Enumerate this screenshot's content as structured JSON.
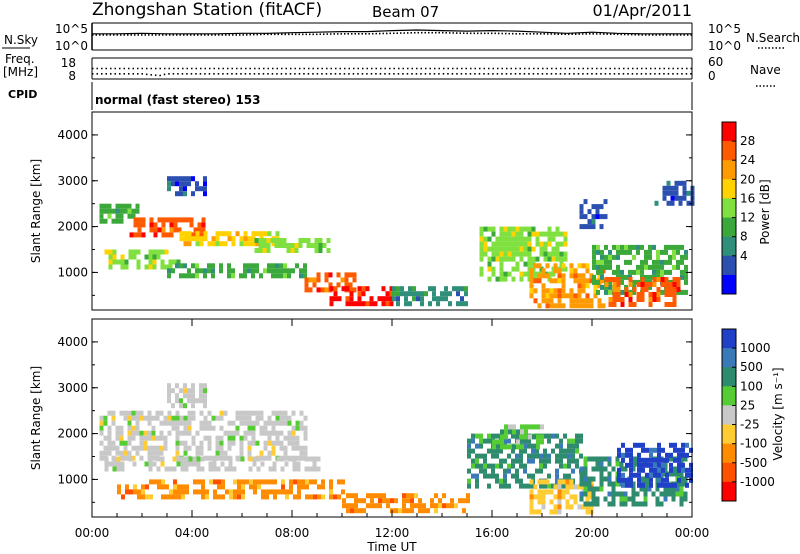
{
  "header": {
    "station": "Zhongshan Station (fitACF)",
    "beam": "Beam 07",
    "date": "01/Apr/2011"
  },
  "chart_data": [
    {
      "type": "line",
      "panel": "nsky-nsearch",
      "left_label": "N.Sky",
      "right_label": "N.Search",
      "left_ticks": [
        "10^5",
        "10^0"
      ],
      "right_ticks": [
        "10^5",
        "10^0"
      ],
      "x": [
        0,
        1,
        2,
        3,
        4,
        5,
        6,
        7,
        8,
        9,
        10,
        11,
        12,
        13,
        14,
        15,
        16,
        17,
        18,
        19,
        20,
        21,
        22,
        23,
        24
      ],
      "series": [
        {
          "values": [
            3.0,
            3.0,
            3.1,
            3.0,
            3.0,
            3.0,
            3.1,
            3.1,
            3.2,
            3.3,
            3.4,
            3.4,
            3.6,
            3.7,
            3.6,
            3.5,
            3.6,
            3.5,
            3.3,
            3.1,
            3.3,
            3.1,
            3.0,
            3.0,
            3.0
          ]
        },
        {
          "values": [
            2.8,
            2.8,
            2.8,
            2.8,
            2.8,
            2.8,
            2.8,
            2.9,
            2.9,
            2.9,
            3.0,
            3.0,
            3.1,
            3.2,
            3.2,
            3.1,
            3.1,
            3.0,
            3.0,
            2.9,
            3.0,
            2.9,
            2.8,
            2.8,
            2.8
          ]
        }
      ],
      "ylim": [
        0,
        5
      ]
    },
    {
      "type": "line",
      "panel": "freq-nave",
      "left_label_line1": "Freq.",
      "left_label_line2": "[MHz]",
      "right_label": "Nave",
      "left_ticks": [
        "18",
        "8"
      ],
      "right_ticks": [
        "60",
        "0"
      ],
      "x": [
        0,
        1,
        2,
        2.5,
        2.7,
        3,
        4,
        6,
        8,
        10,
        12,
        14,
        16,
        18,
        20,
        22,
        24
      ],
      "series": [
        {
          "values": [
            13.0,
            13.0,
            13.0,
            13.0,
            13.0,
            13.0,
            13.0,
            13.0,
            13.0,
            13.0,
            13.0,
            13.0,
            13.0,
            13.0,
            13.0,
            13.0,
            13.0
          ]
        },
        {
          "values": [
            10.5,
            10.5,
            10.5,
            9.8,
            9.6,
            10.5,
            10.5,
            10.5,
            10.5,
            10.5,
            10.5,
            10.5,
            10.5,
            10.5,
            10.5,
            10.5,
            10.5
          ]
        }
      ],
      "ylim": [
        8,
        18
      ]
    },
    {
      "type": "heatmap",
      "panel": "power",
      "cpid_label": "CPID",
      "mode_text": "normal (fast stereo) 153",
      "ylabel": "Slant Range [km]",
      "y_ticks": [
        "4000",
        "3000",
        "2000",
        "1000"
      ],
      "ylim": [
        180,
        4500
      ],
      "colorbar_label": "Power [dB]",
      "colorbar_ticks": [
        "28",
        "24",
        "20",
        "16",
        "12",
        "8",
        "4"
      ],
      "colorbar_colors": [
        "#ff0000",
        "#ff5a00",
        "#ff9a00",
        "#ffd200",
        "#7fe040",
        "#3aa83a",
        "#2f8f7a",
        "#2c50b0",
        "#0000ff"
      ],
      "regions": [
        {
          "x": [
            0.3,
            2.0
          ],
          "r": [
            2100,
            2500
          ],
          "c": 5
        },
        {
          "x": [
            1.5,
            4.5
          ],
          "r": [
            1850,
            2200
          ],
          "c": 1
        },
        {
          "x": [
            3.5,
            7.5
          ],
          "r": [
            1650,
            1900
          ],
          "c": 3
        },
        {
          "x": [
            6.5,
            9.5
          ],
          "r": [
            1450,
            1750
          ],
          "c": 4
        },
        {
          "x": [
            0.5,
            3.5
          ],
          "r": [
            1100,
            1500
          ],
          "c": 4
        },
        {
          "x": [
            3.0,
            8.5
          ],
          "r": [
            900,
            1200
          ],
          "c": 5
        },
        {
          "x": [
            8.5,
            10.5
          ],
          "r": [
            600,
            1000
          ],
          "c": 1
        },
        {
          "x": [
            9.5,
            12.0
          ],
          "r": [
            300,
            700
          ],
          "c": 0
        },
        {
          "x": [
            12.0,
            15.0
          ],
          "r": [
            300,
            700
          ],
          "c": 6
        },
        {
          "x": [
            15.5,
            19.0
          ],
          "r": [
            800,
            2000
          ],
          "c": 4
        },
        {
          "x": [
            17.5,
            20.5
          ],
          "r": [
            300,
            1200
          ],
          "c": 2
        },
        {
          "x": [
            20.0,
            23.8
          ],
          "r": [
            600,
            1600
          ],
          "c": 5
        },
        {
          "x": [
            20.5,
            23.5
          ],
          "r": [
            300,
            900
          ],
          "c": 1
        },
        {
          "x": [
            3.0,
            4.5
          ],
          "r": [
            2700,
            3100
          ],
          "c": 7
        },
        {
          "x": [
            19.5,
            20.5
          ],
          "r": [
            2000,
            2600
          ],
          "c": 7
        },
        {
          "x": [
            22.5,
            24.0
          ],
          "r": [
            2500,
            3000
          ],
          "c": 7
        }
      ]
    },
    {
      "type": "heatmap",
      "panel": "velocity",
      "ylabel": "Slant Range [km]",
      "y_ticks": [
        "4000",
        "3000",
        "2000",
        "1000"
      ],
      "ylim": [
        180,
        4500
      ],
      "xlabel": "Time UT",
      "x_ticks": [
        "00:00",
        "04:00",
        "08:00",
        "12:00",
        "16:00",
        "20:00",
        "00:00"
      ],
      "xlim": [
        0,
        24
      ],
      "colorbar_label": "Velocity [m s⁻¹]",
      "colorbar_ticks": [
        "1000",
        "500",
        "100",
        "25",
        "-25",
        "-100",
        "-500",
        "-1000"
      ],
      "colorbar_colors": [
        "#2040c8",
        "#3a7ab8",
        "#2e8b6e",
        "#55cc33",
        "#c8c8c8",
        "#ffcc33",
        "#ff8c00",
        "#ff5000",
        "#ff0000"
      ],
      "regions": [
        {
          "x": [
            0.3,
            8.5
          ],
          "r": [
            1500,
            2500
          ],
          "c": 4
        },
        {
          "x": [
            0.5,
            9.0
          ],
          "r": [
            1200,
            1500
          ],
          "c": 4
        },
        {
          "x": [
            1.0,
            10.0
          ],
          "r": [
            600,
            1000
          ],
          "c": 6
        },
        {
          "x": [
            10.0,
            15.0
          ],
          "r": [
            300,
            700
          ],
          "c": 6
        },
        {
          "x": [
            15.0,
            19.5
          ],
          "r": [
            800,
            2000
          ],
          "c": 2
        },
        {
          "x": [
            17.5,
            20.0
          ],
          "r": [
            300,
            1000
          ],
          "c": 5
        },
        {
          "x": [
            19.5,
            23.8
          ],
          "r": [
            500,
            1500
          ],
          "c": 2
        },
        {
          "x": [
            21.0,
            24.0
          ],
          "r": [
            900,
            1800
          ],
          "c": 0
        },
        {
          "x": [
            3.0,
            4.5
          ],
          "r": [
            2600,
            3100
          ],
          "c": 4
        },
        {
          "x": [
            16.0,
            18.0
          ],
          "r": [
            1700,
            2200
          ],
          "c": 3
        }
      ]
    }
  ]
}
